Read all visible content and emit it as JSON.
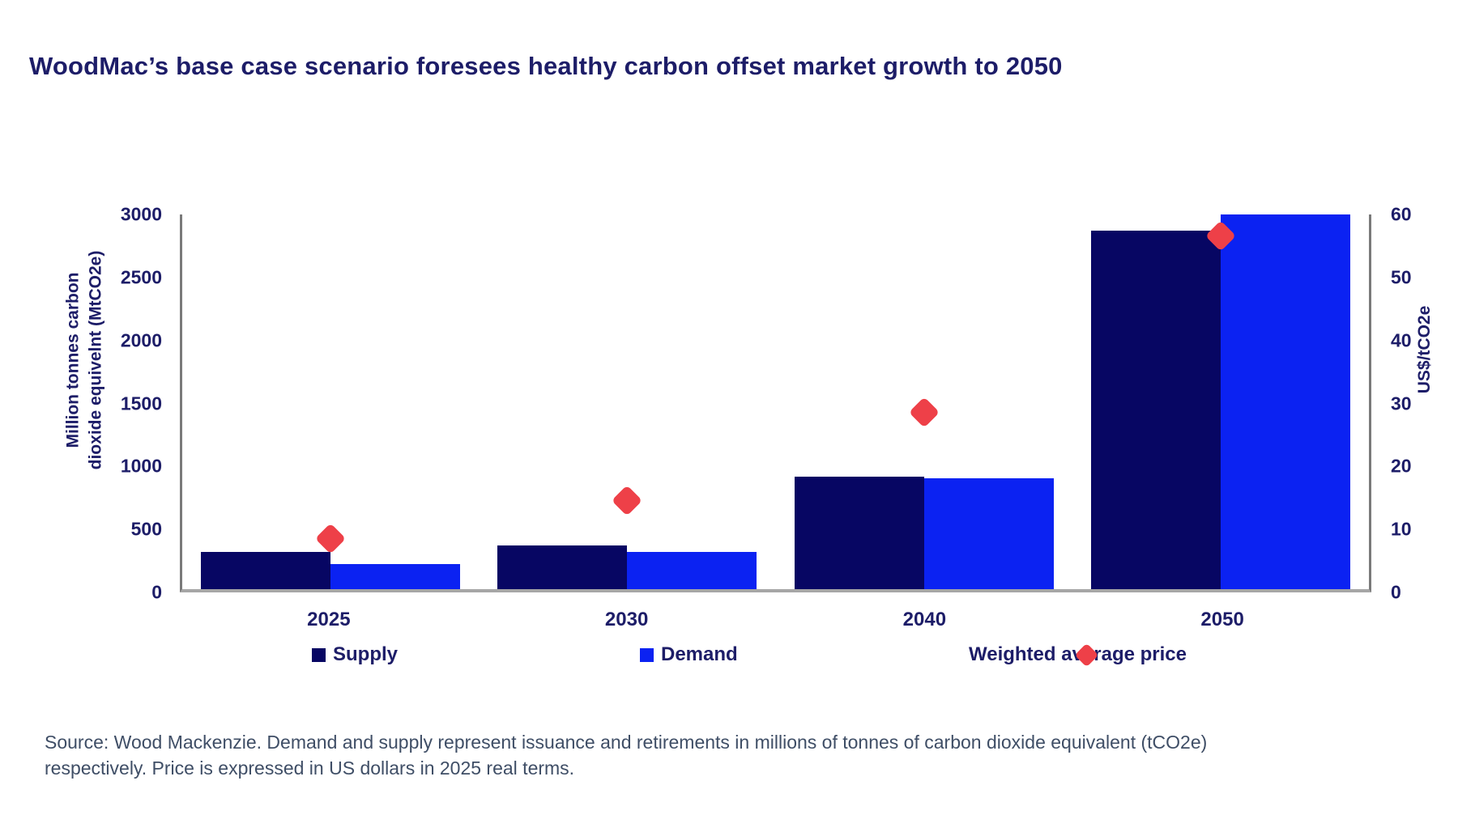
{
  "title": "WoodMac’s base case scenario foresees healthy carbon offset market growth to 2050",
  "colors": {
    "supply": "#070663",
    "demand": "#0b22f2",
    "price": "#ee4048",
    "navy_text": "#1d1d68",
    "source_text": "#3f4e66"
  },
  "chart_data": {
    "type": "combo",
    "categories": [
      "2025",
      "2030",
      "2040",
      "2050"
    ],
    "series": [
      {
        "name": "Supply",
        "type": "bar",
        "axis": "left",
        "values": [
          300,
          350,
          900,
          2870
        ]
      },
      {
        "name": "Demand",
        "type": "bar",
        "axis": "left",
        "values": [
          200,
          300,
          890,
          3000
        ]
      },
      {
        "name": "Weighted average price",
        "type": "scatter",
        "marker": "diamond",
        "axis": "right",
        "values": [
          8,
          14,
          28,
          56
        ]
      }
    ],
    "left_axis": {
      "label": "Million tonnes carbon dioxide equivelnt (MtCO2e)",
      "label_lines": [
        "Million tonnes carbon",
        "dioxide equivelnt (MtCO2e)"
      ],
      "ticks": [
        0,
        500,
        1000,
        1500,
        2000,
        2500,
        3000
      ],
      "range": [
        0,
        3000
      ]
    },
    "right_axis": {
      "label": "US$/tCO2e",
      "ticks": [
        0,
        10,
        20,
        30,
        40,
        50,
        60
      ],
      "range": [
        0,
        60
      ]
    },
    "grid": false,
    "legend_position": "bottom"
  },
  "legend": {
    "supply_label": "Supply",
    "demand_label": "Demand",
    "price_label": "Weighted average price"
  },
  "source": {
    "lines": [
      "Source: Wood Mackenzie. Demand and supply represent issuance and retirements in millions of tonnes of carbon dioxide equivalent (tCO2e)",
      "respectively. Price is expressed in US dollars in 2025 real terms."
    ]
  }
}
